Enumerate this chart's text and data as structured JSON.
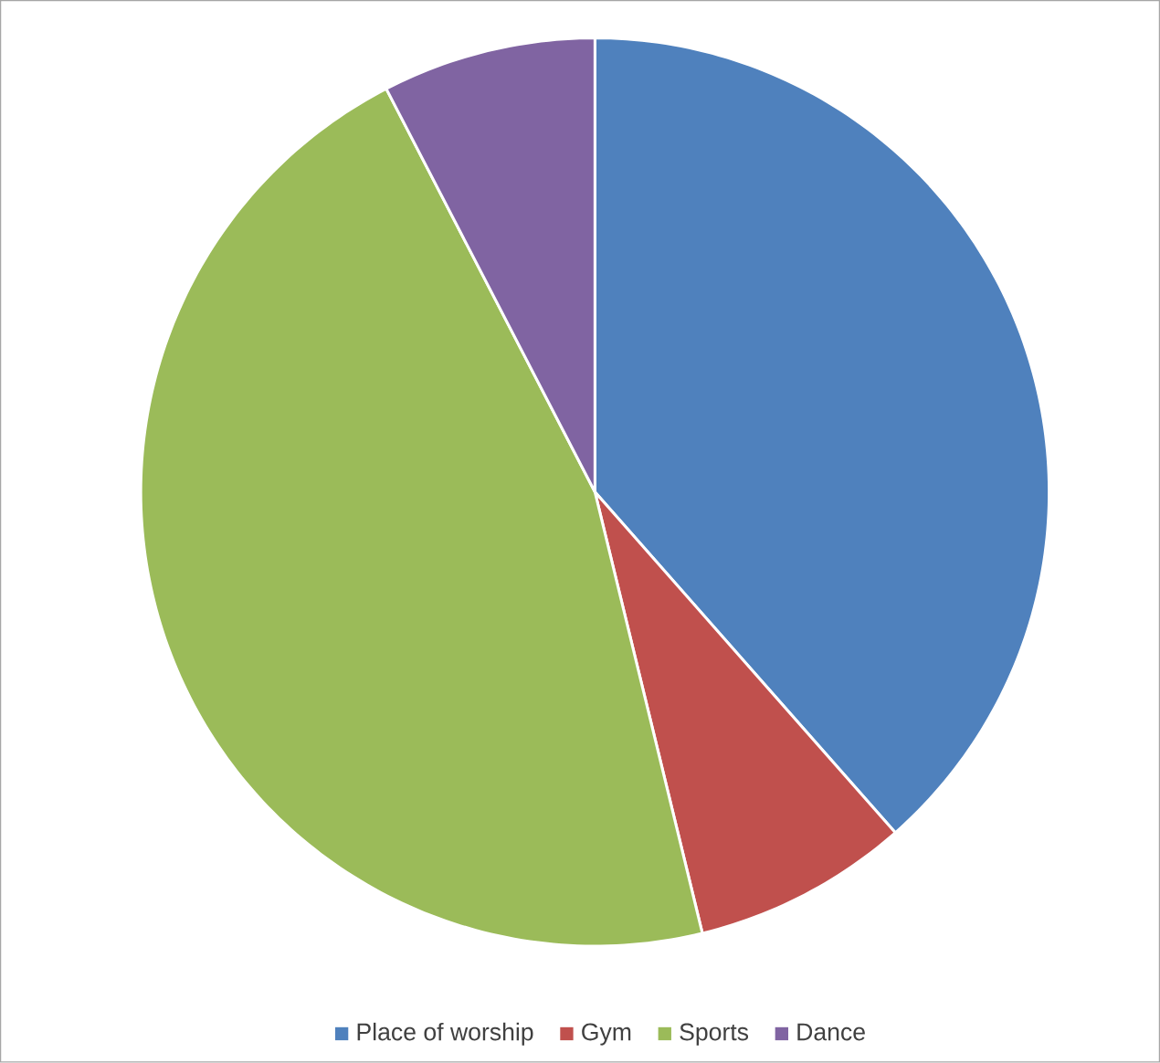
{
  "chart_data": {
    "type": "pie",
    "categories": [
      "Place of worship",
      "Gym",
      "Sports",
      "Dance"
    ],
    "values": [
      38.5,
      7.7,
      46.2,
      7.6
    ],
    "colors": [
      "#4f81bd",
      "#c0504d",
      "#9bbb59",
      "#8064a2"
    ],
    "legend": "bottom"
  }
}
